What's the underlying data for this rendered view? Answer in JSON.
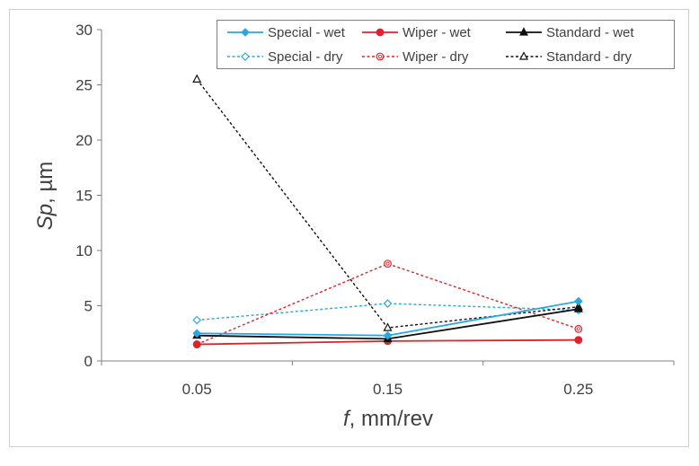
{
  "chart_data": {
    "type": "line",
    "title": "",
    "x_categories": [
      "0.05",
      "0.15",
      "0.25"
    ],
    "xlabel": {
      "italic": "f",
      "rest": ", mm/rev"
    },
    "ylabel": {
      "italic": "Sp",
      "rest": ", µm"
    },
    "ylim": [
      0,
      30
    ],
    "yticks": [
      0,
      5,
      10,
      15,
      20,
      25,
      30
    ],
    "grid": false,
    "legend_position": "top-right",
    "series": [
      {
        "name": "Special - wet",
        "values": [
          2.5,
          2.3,
          5.4
        ],
        "color": "#29A8E0",
        "dash": "solid",
        "marker": "diamond",
        "filled": true
      },
      {
        "name": "Wiper - wet",
        "values": [
          1.5,
          1.8,
          1.9
        ],
        "color": "#E0232B",
        "dash": "solid",
        "marker": "circle",
        "filled": true
      },
      {
        "name": "Standard - wet",
        "values": [
          2.3,
          2.0,
          4.7
        ],
        "color": "#111111",
        "dash": "solid",
        "marker": "triangle",
        "filled": true
      },
      {
        "name": "Special - dry",
        "values": [
          3.7,
          5.2,
          4.6
        ],
        "color": "#29A8E0",
        "dash": "dashed",
        "marker": "diamond",
        "filled": false
      },
      {
        "name": "Wiper - dry",
        "values": [
          1.5,
          8.8,
          2.9
        ],
        "color": "#E0232B",
        "dash": "dashed",
        "marker": "circle",
        "filled": false
      },
      {
        "name": "Standard - dry",
        "values": [
          25.5,
          3.0,
          4.9
        ],
        "color": "#111111",
        "dash": "dashed",
        "marker": "triangle",
        "filled": false
      }
    ]
  }
}
